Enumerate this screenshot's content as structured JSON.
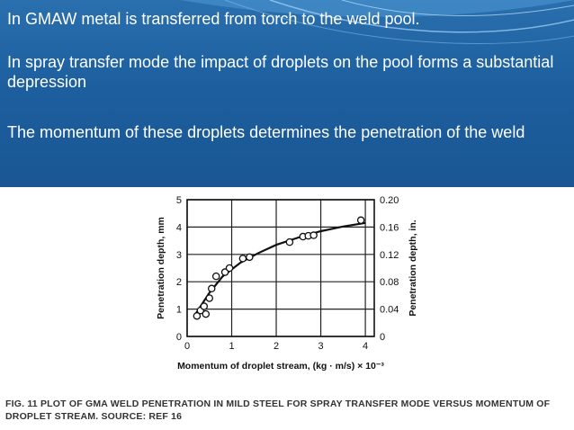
{
  "slide": {
    "line1": "In GMAW metal is transferred from torch to the weld pool.",
    "line2": "In spray transfer mode the impact of droplets on the pool forms a substantial depression",
    "line3": "The momentum of these droplets determines the penetration of the weld",
    "colors": {
      "banner": "#1d5f9f",
      "text": "#ffffff"
    }
  },
  "figure": {
    "caption": "FIG. 11 PLOT OF GMA WELD PENETRATION IN MILD STEEL FOR SPRAY TRANSFER MODE VERSUS MOMENTUM OF DROPLET STREAM. SOURCE: REF 16"
  },
  "chart_data": {
    "type": "scatter",
    "xlabel": "Momentum of droplet stream, (kg · m/s) × 10⁻³",
    "ylabel": "Penetration depth, mm",
    "y2label": "Penetration depth, in.",
    "xlim": [
      0,
      4.2
    ],
    "ylim": [
      0,
      5
    ],
    "y2lim": [
      0,
      0.2
    ],
    "xticks": [
      "0",
      "1",
      "2",
      "3",
      "4"
    ],
    "yticks": [
      "0",
      "1",
      "2",
      "3",
      "4",
      "5"
    ],
    "y2ticks": [
      "0",
      "0.04",
      "0.08",
      "0.12",
      "0.16",
      "0.20"
    ],
    "grid": true,
    "points": [
      {
        "x": 0.22,
        "y": 0.75
      },
      {
        "x": 0.3,
        "y": 0.95
      },
      {
        "x": 0.38,
        "y": 1.1
      },
      {
        "x": 0.42,
        "y": 0.82
      },
      {
        "x": 0.5,
        "y": 1.4
      },
      {
        "x": 0.55,
        "y": 1.75
      },
      {
        "x": 0.65,
        "y": 2.2
      },
      {
        "x": 0.85,
        "y": 2.35
      },
      {
        "x": 0.95,
        "y": 2.5
      },
      {
        "x": 1.25,
        "y": 2.85
      },
      {
        "x": 1.4,
        "y": 2.9
      },
      {
        "x": 2.3,
        "y": 3.45
      },
      {
        "x": 2.6,
        "y": 3.65
      },
      {
        "x": 2.72,
        "y": 3.68
      },
      {
        "x": 2.84,
        "y": 3.7
      },
      {
        "x": 3.9,
        "y": 4.25
      }
    ],
    "fit_line": [
      {
        "x": 0.2,
        "y": 0.85
      },
      {
        "x": 0.5,
        "y": 1.6
      },
      {
        "x": 0.8,
        "y": 2.2
      },
      {
        "x": 1.2,
        "y": 2.7
      },
      {
        "x": 1.6,
        "y": 3.05
      },
      {
        "x": 2.0,
        "y": 3.35
      },
      {
        "x": 2.5,
        "y": 3.62
      },
      {
        "x": 3.0,
        "y": 3.85
      },
      {
        "x": 3.5,
        "y": 4.02
      },
      {
        "x": 4.0,
        "y": 4.15
      }
    ]
  }
}
